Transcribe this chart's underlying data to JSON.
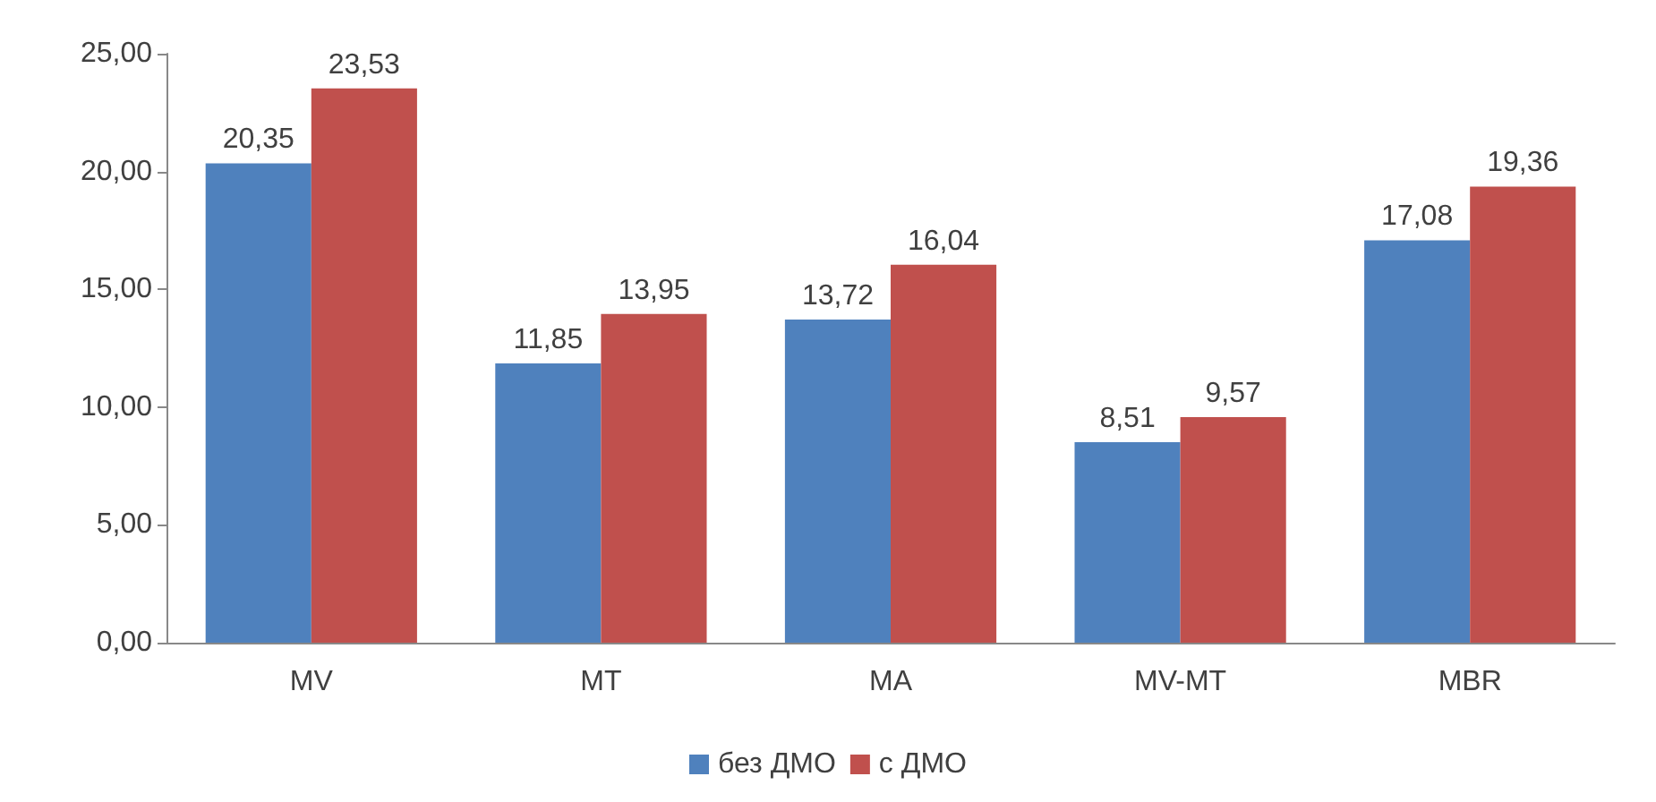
{
  "chart_data": {
    "type": "bar",
    "categories": [
      "MV",
      "MT",
      "MA",
      "MV-MT",
      "MBR"
    ],
    "series": [
      {
        "name": "без ДМО",
        "color": "#4f81bd",
        "values": [
          20.35,
          11.85,
          13.72,
          8.51,
          17.08
        ],
        "value_labels": [
          "20,35",
          "11,85",
          "13,72",
          "8,51",
          "17,08"
        ]
      },
      {
        "name": "с ДМО",
        "color": "#c0504d",
        "values": [
          23.53,
          13.95,
          16.04,
          9.57,
          19.36
        ],
        "value_labels": [
          "23,53",
          "13,95",
          "16,04",
          "9,57",
          "19,36"
        ]
      }
    ],
    "ylim": [
      0,
      25
    ],
    "yticks": [
      {
        "value": 0,
        "label": "0,00"
      },
      {
        "value": 5,
        "label": "5,00"
      },
      {
        "value": 10,
        "label": "10,00"
      },
      {
        "value": 15,
        "label": "15,00"
      },
      {
        "value": 20,
        "label": "20,00"
      },
      {
        "value": 25,
        "label": "25,00"
      }
    ],
    "grid": false,
    "legend": "bottom"
  }
}
